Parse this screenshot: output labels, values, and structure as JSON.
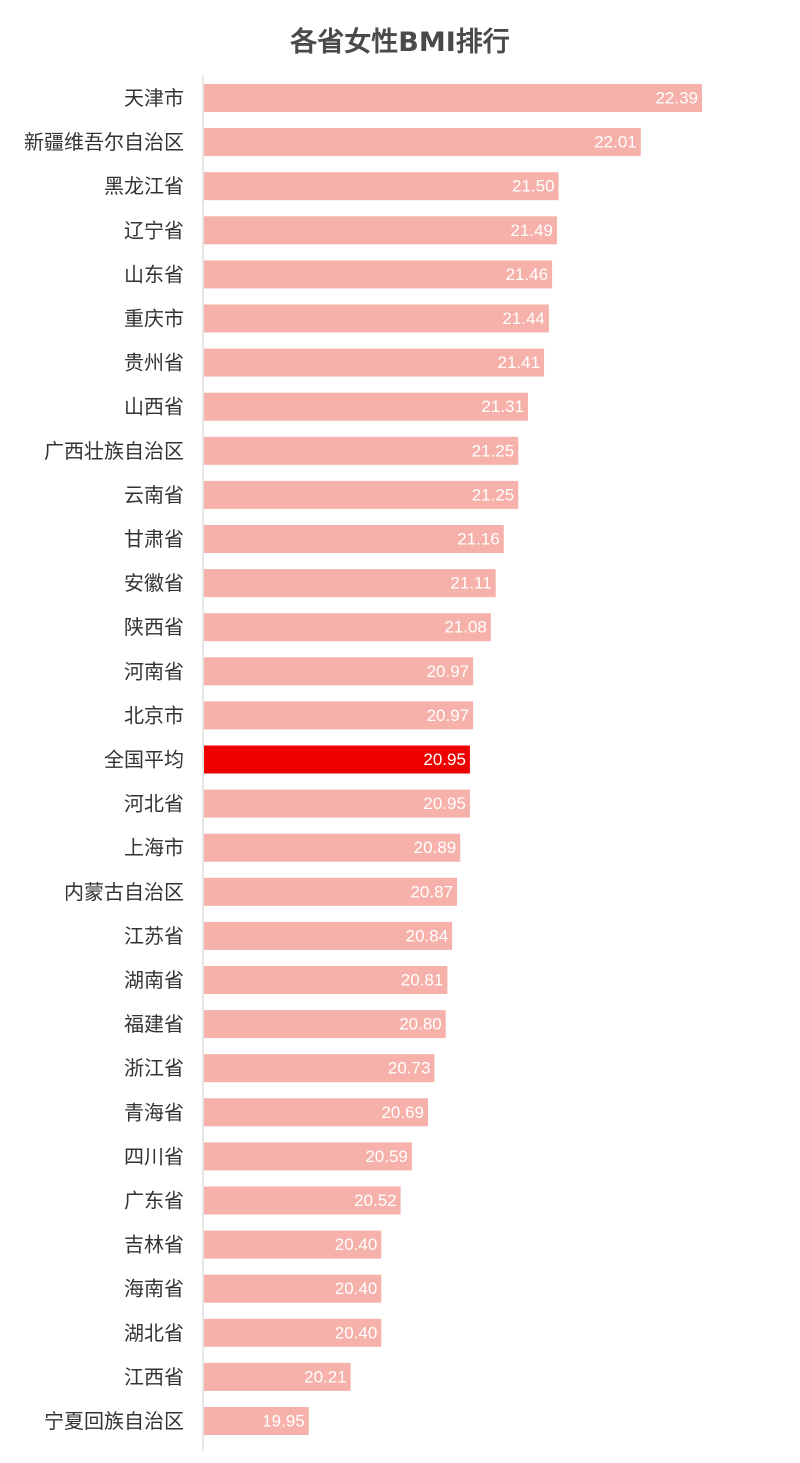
{
  "chart_data": {
    "type": "bar",
    "orientation": "horizontal",
    "title": "各省女性BMI排行",
    "categories": [
      "天津市",
      "新疆维吾尔自治区",
      "黑龙江省",
      "辽宁省",
      "山东省",
      "重庆市",
      "贵州省",
      "山西省",
      "广西壮族自治区",
      "云南省",
      "甘肃省",
      "安徽省",
      "陕西省",
      "河南省",
      "北京市",
      "全国平均",
      "河北省",
      "上海市",
      "内蒙古自治区",
      "江苏省",
      "湖南省",
      "福建省",
      "浙江省",
      "青海省",
      "四川省",
      "广东省",
      "吉林省",
      "海南省",
      "湖北省",
      "江西省",
      "宁夏回族自治区"
    ],
    "values": [
      22.39,
      22.01,
      21.5,
      21.49,
      21.46,
      21.44,
      21.41,
      21.31,
      21.25,
      21.25,
      21.16,
      21.11,
      21.08,
      20.97,
      20.97,
      20.95,
      20.95,
      20.89,
      20.87,
      20.84,
      20.81,
      20.8,
      20.73,
      20.69,
      20.59,
      20.52,
      20.4,
      20.4,
      20.4,
      20.21,
      19.95
    ],
    "value_labels": [
      "22.39",
      "22.01",
      "21.50",
      "21.49",
      "21.46",
      "21.44",
      "21.41",
      "21.31",
      "21.25",
      "21.25",
      "21.16",
      "21.11",
      "21.08",
      "20.97",
      "20.97",
      "20.95",
      "20.95",
      "20.89",
      "20.87",
      "20.84",
      "20.81",
      "20.80",
      "20.73",
      "20.69",
      "20.59",
      "20.52",
      "20.40",
      "20.40",
      "20.40",
      "20.21",
      "19.95"
    ],
    "highlight_category": "全国平均",
    "xlim": [
      19.3,
      22.39
    ],
    "grid": false,
    "legend": "none",
    "colors": {
      "bar": "#f6b1aa",
      "highlight": "#ee0000",
      "axis": "#cccccc",
      "label": "#333333",
      "value_text": "#ffffff"
    }
  }
}
